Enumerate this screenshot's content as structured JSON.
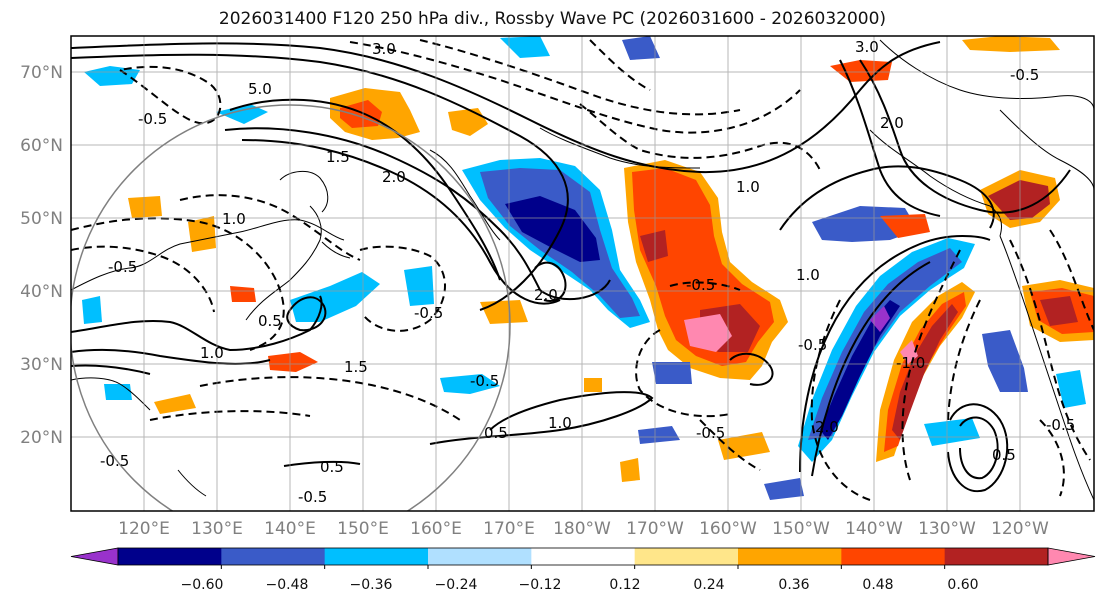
{
  "title": "2026031400 F120 250 hPa div., Rossby Wave PC (2026031600 - 2026032000)",
  "map": {
    "lon_range": [
      "110°E",
      "110°W"
    ],
    "lat_range": [
      "10°N",
      "75°N"
    ],
    "lat_labels": [
      "20°N",
      "30°N",
      "40°N",
      "50°N",
      "60°N",
      "70°N"
    ],
    "lon_labels": [
      "120°E",
      "130°E",
      "140°E",
      "150°E",
      "160°E",
      "170°E",
      "180°W",
      "170°W",
      "160°W",
      "150°W",
      "140°W",
      "130°W",
      "120°W"
    ],
    "gridlines": true,
    "coastlines": true,
    "filled_field": "250 hPa divergence",
    "contour_field": "Rossby Wave PC",
    "contour_labels": [
      {
        "text": "3.0"
      },
      {
        "text": "3.0"
      },
      {
        "text": "5.0"
      },
      {
        "text": "2.0"
      },
      {
        "text": "1.5"
      },
      {
        "text": "2.0"
      },
      {
        "text": "-0.5"
      },
      {
        "text": "1.0"
      },
      {
        "text": "1.0"
      },
      {
        "text": "-0.5"
      },
      {
        "text": "2.0"
      },
      {
        "text": "-0.5"
      },
      {
        "text": "0.5"
      },
      {
        "text": "1.0"
      },
      {
        "text": "-0.5"
      },
      {
        "text": "-0.5"
      },
      {
        "text": "0.5"
      },
      {
        "text": "-0.5"
      },
      {
        "text": "-0.5"
      },
      {
        "text": "1.5"
      },
      {
        "text": "1.0"
      },
      {
        "text": "2.0"
      },
      {
        "text": "-1.0"
      },
      {
        "text": "-0.5"
      },
      {
        "text": "0.5"
      },
      {
        "text": "-0.5"
      },
      {
        "text": "-0.5"
      },
      {
        "text": "0.5"
      },
      {
        "text": "-0.5"
      },
      {
        "text": "1.0"
      }
    ]
  },
  "colorbar": {
    "ticks": [
      "−0.60",
      "−0.48",
      "−0.36",
      "−0.24",
      "−0.12",
      "0.12",
      "0.24",
      "0.36",
      "0.48",
      "0.60"
    ],
    "colors": [
      "#9932cc",
      "#00008b",
      "#3a5bc8",
      "#00bfff",
      "#b0e0ff",
      "#ffffff",
      "#ffe68a",
      "#ffa500",
      "#ff4500",
      "#b22222",
      "#ff88b0"
    ],
    "extend": "both"
  }
}
